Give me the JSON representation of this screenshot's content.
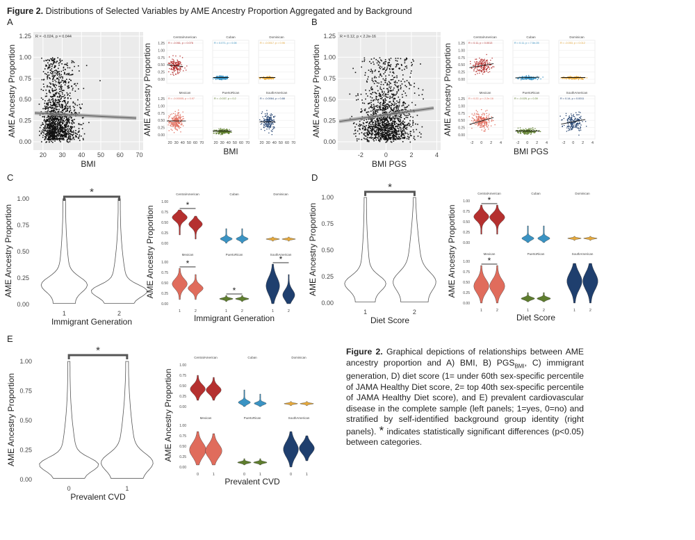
{
  "figure": {
    "title_bold": "Figure 2.",
    "title_text": " Distributions of Selected Variables by AME Ancestry Proportion Aggregated and by Background",
    "caption_bold": "Figure 2.",
    "caption_lines": [
      " Graphical depictions of relationships between AME ancestry",
      "proportion and A) BMI, B) PGS",
      ", C) immigrant generation, D) diet",
      "score (1= under 60th sex-specific percentile of JAMA Healthy Diet",
      "score, 2= top 40th sex-specific percentile of JAMA Healthy Diet score),",
      "and E) prevalent cardiovascular disease in the complete sample (left",
      "panels; 1=yes, 0=no) and stratified by self-identified background group",
      "identity (right panels). ",
      "*",
      " indicates statistically significant differences",
      "(p<0.05) between categories."
    ],
    "caption_sub": "BMI"
  },
  "colors": {
    "CentralAmerican": "#b5302f",
    "Cuban": "#3a93c3",
    "Dominican": "#e6a93c",
    "Mexican": "#e06c5c",
    "PuertoRican": "#5e7d2e",
    "SouthAmerican": "#1f3f6e"
  },
  "groups": [
    "CentralAmerican",
    "Cuban",
    "Dominican",
    "Mexican",
    "PuertoRican",
    "SouthAmerican"
  ],
  "ylabel": "AME Ancestry Proportion",
  "star": "*",
  "panels": {
    "A": {
      "label": "A",
      "xlabel": "BMI",
      "overall_annotation": "R = -0.024, p = 0.044",
      "yticks": [
        "0.00",
        "0.25",
        "0.50",
        "0.75",
        "1.00",
        "1.25"
      ],
      "xticks": [
        "20",
        "30",
        "40",
        "50",
        "60",
        "70"
      ],
      "facet_yticks": [
        "0.00",
        "0.25",
        "0.50",
        "0.75",
        "1.00",
        "1.25"
      ],
      "facet_xticks": [
        "20",
        "30",
        "40",
        "50",
        "60",
        "70"
      ],
      "facet_annotations": [
        "R = -0.061, p = 0.076",
        "R = 0.071, p = 0.08",
        "R = -0.0017, p = 0.96",
        "R = -0.00005, p = 0.97",
        "R = -0.037, p = 0.2",
        "R = -0.0064, p = 0.88"
      ]
    },
    "B": {
      "label": "B",
      "xlabel": "BMI PGS",
      "overall_annotation": "R = 0.12, p < 2.2e-16",
      "yticks": [
        "0.00",
        "0.25",
        "0.50",
        "0.75",
        "1.00",
        "1.25"
      ],
      "xticks": [
        "-2",
        "0",
        "2",
        "4"
      ],
      "facet_yticks": [
        "0.00",
        "0.25",
        "0.50",
        "0.75",
        "1.00",
        "1.25"
      ],
      "facet_xticks": [
        "-2",
        "0",
        "2",
        "4"
      ],
      "facet_annotations": [
        "R = 0.11, p = 0.0013",
        "R = 0.11, p = 7.5e-05",
        "R = -0.053, p = 0.012",
        "R = 0.22, p < 2.2e-16",
        "R = -0.025, p = 0.39",
        "R = 0.14, p = 0.0011"
      ]
    },
    "C": {
      "label": "C",
      "xlabel": "Immigrant Generation",
      "yticks": [
        "0.00",
        "0.25",
        "0.50",
        "0.75",
        "1.00"
      ],
      "xticks": [
        "1",
        "2"
      ],
      "facet_yticks": [
        "0.00",
        "0.25",
        "0.50",
        "0.75",
        "1.00"
      ],
      "facet_xticks": [
        "1",
        "2"
      ]
    },
    "D": {
      "label": "D",
      "xlabel": "Diet Score",
      "yticks": [
        "0.00",
        "0.25",
        "0.50",
        "0.75",
        "1.00"
      ],
      "xticks": [
        "1",
        "2"
      ],
      "facet_yticks": [
        "0.00",
        "0.25",
        "0.50",
        "0.75",
        "1.00"
      ],
      "facet_xticks": [
        "1",
        "2"
      ]
    },
    "E": {
      "label": "E",
      "xlabel": "Prevalent CVD",
      "yticks": [
        "0.00",
        "0.25",
        "0.50",
        "0.75",
        "1.00"
      ],
      "xticks": [
        "0",
        "1"
      ],
      "facet_yticks": [
        "0.00",
        "0.25",
        "0.50",
        "0.75",
        "1.00"
      ],
      "facet_xticks": [
        "0",
        "1"
      ]
    }
  }
}
